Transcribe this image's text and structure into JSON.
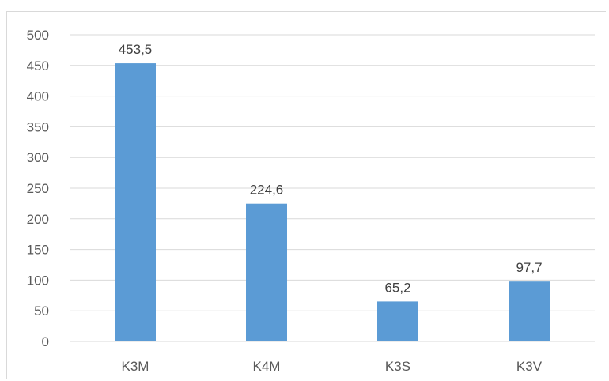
{
  "chart_data": {
    "type": "bar",
    "categories": [
      "K3M",
      "K4M",
      "K3S",
      "K3V"
    ],
    "values": [
      453.5,
      224.6,
      65.2,
      97.7
    ],
    "data_labels": [
      "453,5",
      "224,6",
      "65,2",
      "97,7"
    ],
    "yticks": [
      "0",
      "50",
      "100",
      "150",
      "200",
      "250",
      "300",
      "350",
      "400",
      "450",
      "500"
    ],
    "ylim": [
      0,
      500
    ],
    "grid": true,
    "legend": "none",
    "bar_color": "#5b9bd5",
    "title": "",
    "xlabel": "",
    "ylabel": ""
  }
}
